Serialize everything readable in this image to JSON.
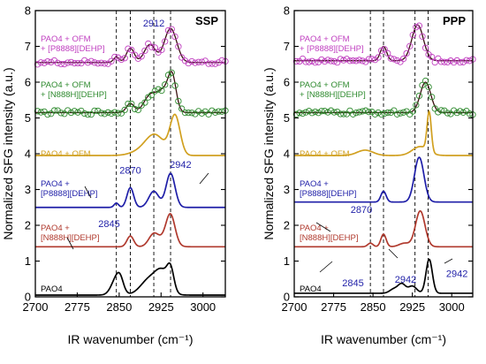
{
  "chart_data": {
    "type": "line",
    "ylabel": "Normalized SFG intensity (a.u.)",
    "panels": [
      {
        "title": "SSP",
        "xlabel": "IR wavenumber (cm⁻¹)",
        "xlim": [
          2700,
          3040
        ],
        "ylim": [
          0,
          8
        ],
        "xticks": [
          2700,
          2775,
          2850,
          2925,
          3000
        ],
        "yticks": [
          0,
          1,
          2,
          3,
          4,
          5,
          6,
          7,
          8
        ],
        "vlines": [
          2845,
          2870,
          2912,
          2942
        ],
        "series": [
          {
            "name": "PAO4",
            "label_lines": [
              "PAO4"
            ],
            "color": "#000000",
            "markers": false,
            "baseline": 0.05,
            "peaks": [
              [
                2845,
                0.45,
                9
              ],
              [
                2852,
                0.25,
                6
              ],
              [
                2905,
                0.45,
                16
              ],
              [
                2928,
                0.55,
                12
              ],
              [
                2942,
                0.55,
                6
              ]
            ]
          },
          {
            "name": "PAO4 + [N888H][DEHP]",
            "label_lines": [
              "PAO4 +",
              "[N888H][DEHP]"
            ],
            "color": "#b03a2e",
            "markers": false,
            "baseline": 1.4,
            "peaks": [
              [
                2870,
                0.3,
                6
              ],
              [
                2912,
                0.35,
                9
              ],
              [
                2942,
                0.75,
                8
              ],
              [
                2935,
                0.2,
                12
              ]
            ]
          },
          {
            "name": "PAO4 + [P8888][DEHP]",
            "label_lines": [
              "PAO4 +",
              "[P8888][DEHP]"
            ],
            "color": "#1f1fa8",
            "markers": false,
            "baseline": 2.5,
            "peaks": [
              [
                2845,
                0.12,
                4
              ],
              [
                2870,
                0.55,
                6
              ],
              [
                2912,
                0.45,
                9
              ],
              [
                2942,
                0.95,
                8
              ]
            ]
          },
          {
            "name": "PAO4 + OFM",
            "label_lines": [
              "PAO4 + OFM"
            ],
            "color": "#d1a020",
            "markers": false,
            "baseline": 3.95,
            "peaks": [
              [
                2895,
                0.15,
                20
              ],
              [
                2915,
                0.5,
                16
              ],
              [
                2950,
                1.1,
                9
              ]
            ]
          },
          {
            "name": "PAO4 + OFM + [N888H][DEHP]",
            "label_lines": [
              "PAO4 + OFM",
              "+ [N888H][DEHP]"
            ],
            "color": "#2e8a2e",
            "markers": true,
            "baseline": 5.15,
            "peaks": [
              [
                2870,
                0.25,
                7
              ],
              [
                2905,
                0.45,
                11
              ],
              [
                2930,
                0.6,
                12
              ],
              [
                2945,
                0.85,
                7
              ]
            ]
          },
          {
            "name": "PAO4 + OFM + [P8888][DEHP]",
            "label_lines": [
              "PAO4 + OFM",
              "+ [P8888][DEHP]"
            ],
            "color": "#c040c0",
            "markers": true,
            "baseline": 6.55,
            "peaks": [
              [
                2845,
                0.15,
                5
              ],
              [
                2870,
                0.4,
                7
              ],
              [
                2905,
                0.5,
                10
              ],
              [
                2942,
                0.95,
                11
              ]
            ]
          }
        ],
        "annotations": [
          {
            "text": "2912",
            "x": 2912,
            "y": 7.55,
            "color": "#1f1fa8"
          },
          {
            "text": "2942",
            "x": 2960,
            "y": 3.6,
            "color": "#1f1fa8"
          },
          {
            "text": "2870",
            "x": 2870,
            "y": 3.45,
            "color": "#1f1fa8"
          },
          {
            "text": "2845",
            "x": 2832,
            "y": 1.95,
            "color": "#1f1fa8"
          }
        ]
      },
      {
        "title": "PPP",
        "xlabel": "IR wavenumber (cm⁻¹)",
        "xlim": [
          2700,
          3040
        ],
        "ylim": [
          0,
          8
        ],
        "xticks": [
          2700,
          2775,
          2850,
          2925,
          3000
        ],
        "yticks": [
          0,
          1,
          2,
          3,
          4,
          5,
          6,
          7,
          8
        ],
        "vlines": [
          2845,
          2870,
          2930,
          2955
        ],
        "series": [
          {
            "name": "PAO4",
            "label_lines": [
              "PAO4"
            ],
            "color": "#000000",
            "markers": false,
            "baseline": 0.1,
            "peaks": [
              [
                2890,
                0.12,
                8
              ],
              [
                2905,
                0.25,
                7
              ],
              [
                2925,
                0.2,
                8
              ],
              [
                2957,
                0.95,
                6
              ]
            ]
          },
          {
            "name": "PAO4 + [N888H][DEHP]",
            "label_lines": [
              "PAO4 +",
              "[N888H][DEHP]"
            ],
            "color": "#b03a2e",
            "markers": false,
            "baseline": 1.4,
            "peaks": [
              [
                2845,
                0.1,
                5
              ],
              [
                2870,
                0.35,
                5
              ],
              [
                2910,
                0.1,
                10
              ],
              [
                2940,
                1.0,
                9
              ]
            ]
          },
          {
            "name": "PAO4 + [P8888][DEHP]",
            "label_lines": [
              "PAO4 +",
              "[P8888][DEHP]"
            ],
            "color": "#1f1fa8",
            "markers": false,
            "baseline": 2.65,
            "peaks": [
              [
                2870,
                0.3,
                5
              ],
              [
                2938,
                1.25,
                9
              ]
            ]
          },
          {
            "name": "PAO4 + OFM",
            "label_lines": [
              "PAO4 + OFM"
            ],
            "color": "#d1a020",
            "markers": false,
            "baseline": 3.95,
            "peaks": [
              [
                2835,
                0.15,
                15
              ],
              [
                2940,
                0.25,
                15
              ],
              [
                2957,
                1.1,
                4
              ]
            ]
          },
          {
            "name": "PAO4 + OFM + [N888H][DEHP]",
            "label_lines": [
              "PAO4 + OFM",
              "+ [N888H][DEHP]"
            ],
            "color": "#2e8a2e",
            "markers": true,
            "baseline": 5.15,
            "peaks": [
              [
                2950,
                0.85,
                10
              ]
            ]
          },
          {
            "name": "PAO4 + OFM + [P8888][DEHP]",
            "label_lines": [
              "PAO4 + OFM",
              "+ [P8888][DEHP]"
            ],
            "color": "#c040c0",
            "markers": true,
            "baseline": 6.6,
            "peaks": [
              [
                2870,
                0.4,
                6
              ],
              [
                2935,
                1.0,
                11
              ]
            ]
          }
        ],
        "annotations": [
          {
            "text": "2870",
            "x": 2828,
            "y": 2.35,
            "color": "#1f1fa8"
          },
          {
            "text": "2845",
            "x": 2812,
            "y": 0.3,
            "color": "#1f1fa8"
          },
          {
            "text": "2942",
            "x": 2912,
            "y": 0.4,
            "color": "#1f1fa8"
          },
          {
            "text": "2942",
            "x": 3010,
            "y": 0.55,
            "color": "#1f1fa8"
          }
        ]
      }
    ]
  }
}
